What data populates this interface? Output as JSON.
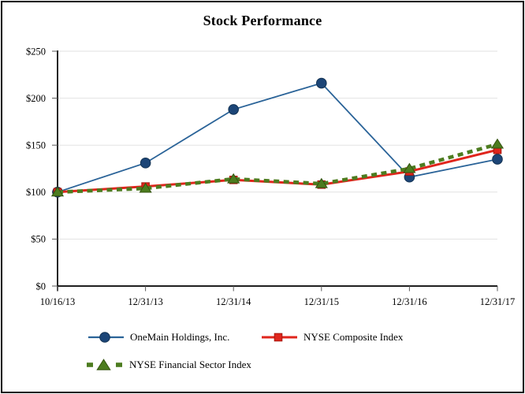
{
  "page": {
    "border_color": "#0a0a0a",
    "background": "#ffffff"
  },
  "chart_data": {
    "type": "line",
    "title": "Stock Performance",
    "xlabel": "",
    "ylabel": "",
    "categories": [
      "10/16/13",
      "12/31/13",
      "12/31/14",
      "12/31/15",
      "12/31/16",
      "12/31/17"
    ],
    "y_ticks": [
      {
        "label": "$250",
        "value": 250
      },
      {
        "label": "$200",
        "value": 200
      },
      {
        "label": "$150",
        "value": 150
      },
      {
        "label": "$100",
        "value": 100
      },
      {
        "label": "$50",
        "value": 50
      },
      {
        "label": "$0",
        "value": 0
      }
    ],
    "ylim": [
      0,
      250
    ],
    "grid": "horizontal",
    "legend_position": "bottom",
    "colors": {
      "grid": "#e2e2e2",
      "axis": "#000000",
      "tick": "#595959",
      "text": "#000000"
    },
    "series": [
      {
        "name": "OneMain Holdings, Inc.",
        "marker": "circle",
        "line": "solid",
        "color": "#2a6398",
        "marker_fill": "#1c4577",
        "marker_edge": "#143353",
        "values": [
          100,
          131,
          188,
          216,
          116,
          135
        ]
      },
      {
        "name": "NYSE Composite Index",
        "marker": "square",
        "line": "solid",
        "color": "#e0251c",
        "marker_fill": "#e0251c",
        "marker_edge": "#a8170e",
        "values": [
          100,
          106,
          113,
          108,
          122,
          145
        ]
      },
      {
        "name": "NYSE Financial Sector Index",
        "marker": "triangle",
        "line": "dashed",
        "color": "#4c7c1f",
        "marker_fill": "#4c7c1f",
        "marker_edge": "#33540f",
        "values": [
          100,
          104,
          114,
          109,
          125,
          151
        ]
      }
    ]
  }
}
